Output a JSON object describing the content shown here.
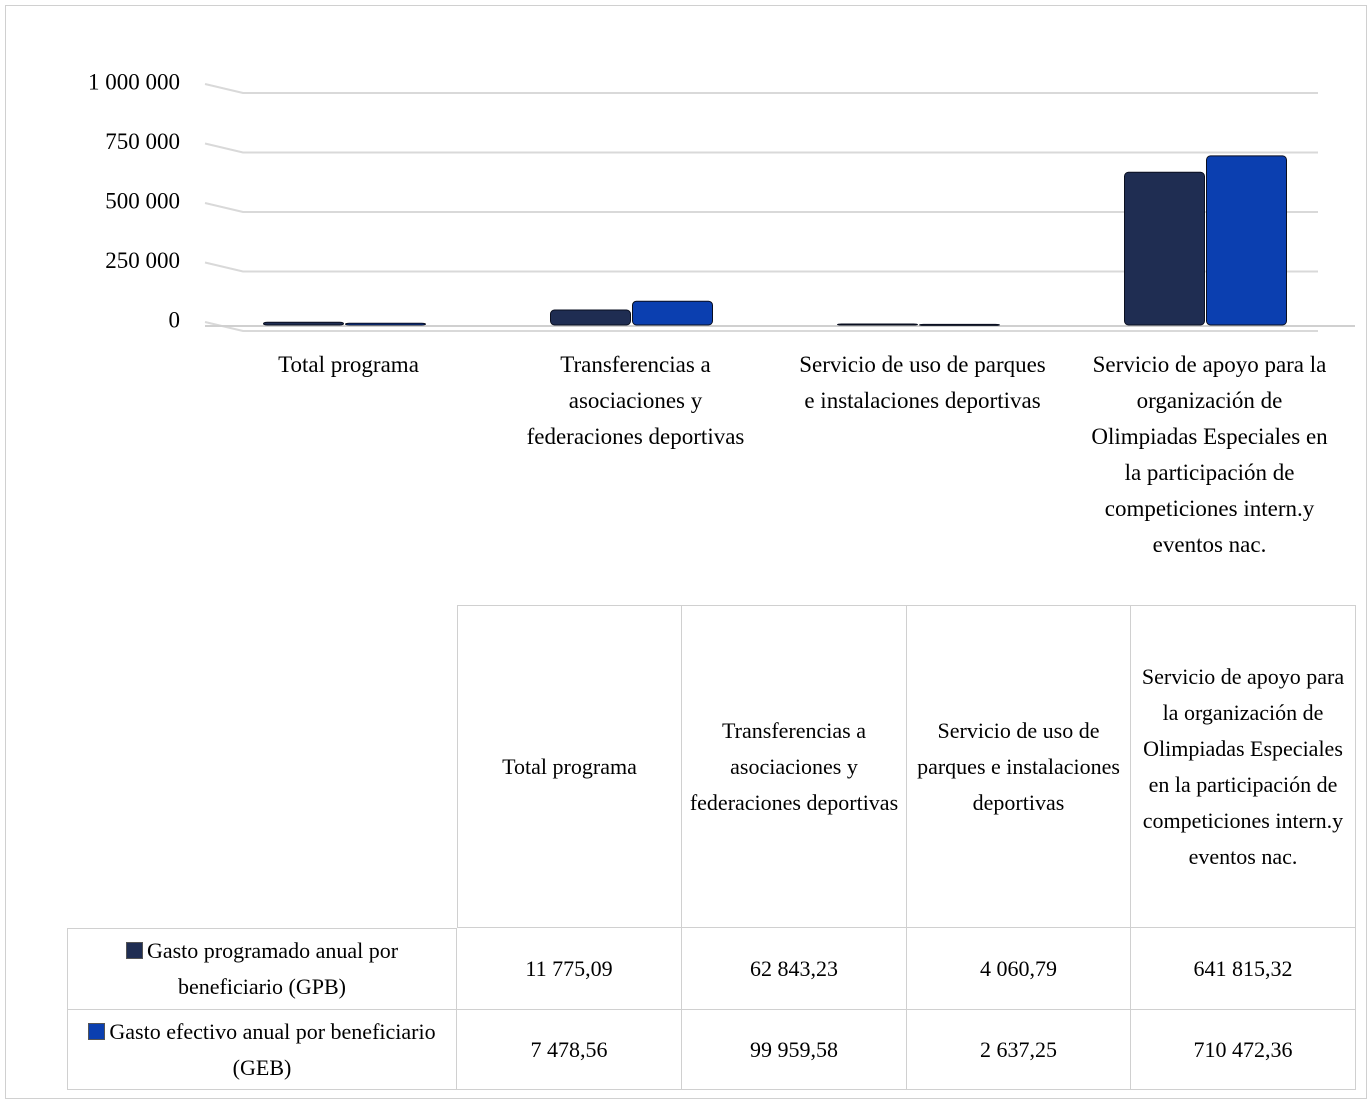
{
  "chart_data": {
    "type": "bar",
    "categories": [
      "Total programa",
      "Transferencias a asociaciones y federaciones deportivas",
      "Servicio de uso de parques e instalaciones deportivas",
      "Servicio de apoyo para la organización de Olimpiadas Especiales en la participación de competiciones intern.y eventos nac."
    ],
    "series": [
      {
        "name": "Gasto programado anual por beneficiario (GPB)",
        "color": "#1f2d52",
        "values": [
          11775.09,
          62843.23,
          4060.79,
          641815.32
        ],
        "value_labels": [
          "11 775,09",
          "62 843,23",
          "4 060,79",
          "641 815,32"
        ]
      },
      {
        "name": "Gasto efectivo anual por beneficiario (GEB)",
        "color": "#0b3fb0",
        "values": [
          7478.56,
          99959.58,
          2637.25,
          710472.36
        ],
        "value_labels": [
          "7 478,56",
          "99 959,58",
          "2 637,25",
          "710 472,36"
        ]
      }
    ],
    "ylim": [
      0,
      1000000
    ],
    "yticks": [
      0,
      {
        "value": 250000,
        "label": "250 000"
      },
      {
        "value": 500000,
        "label": "500 000"
      },
      {
        "value": 750000,
        "label": "750 000"
      },
      {
        "value": 1000000,
        "label": "1 000 000"
      }
    ],
    "grid": true,
    "data_table": true
  }
}
